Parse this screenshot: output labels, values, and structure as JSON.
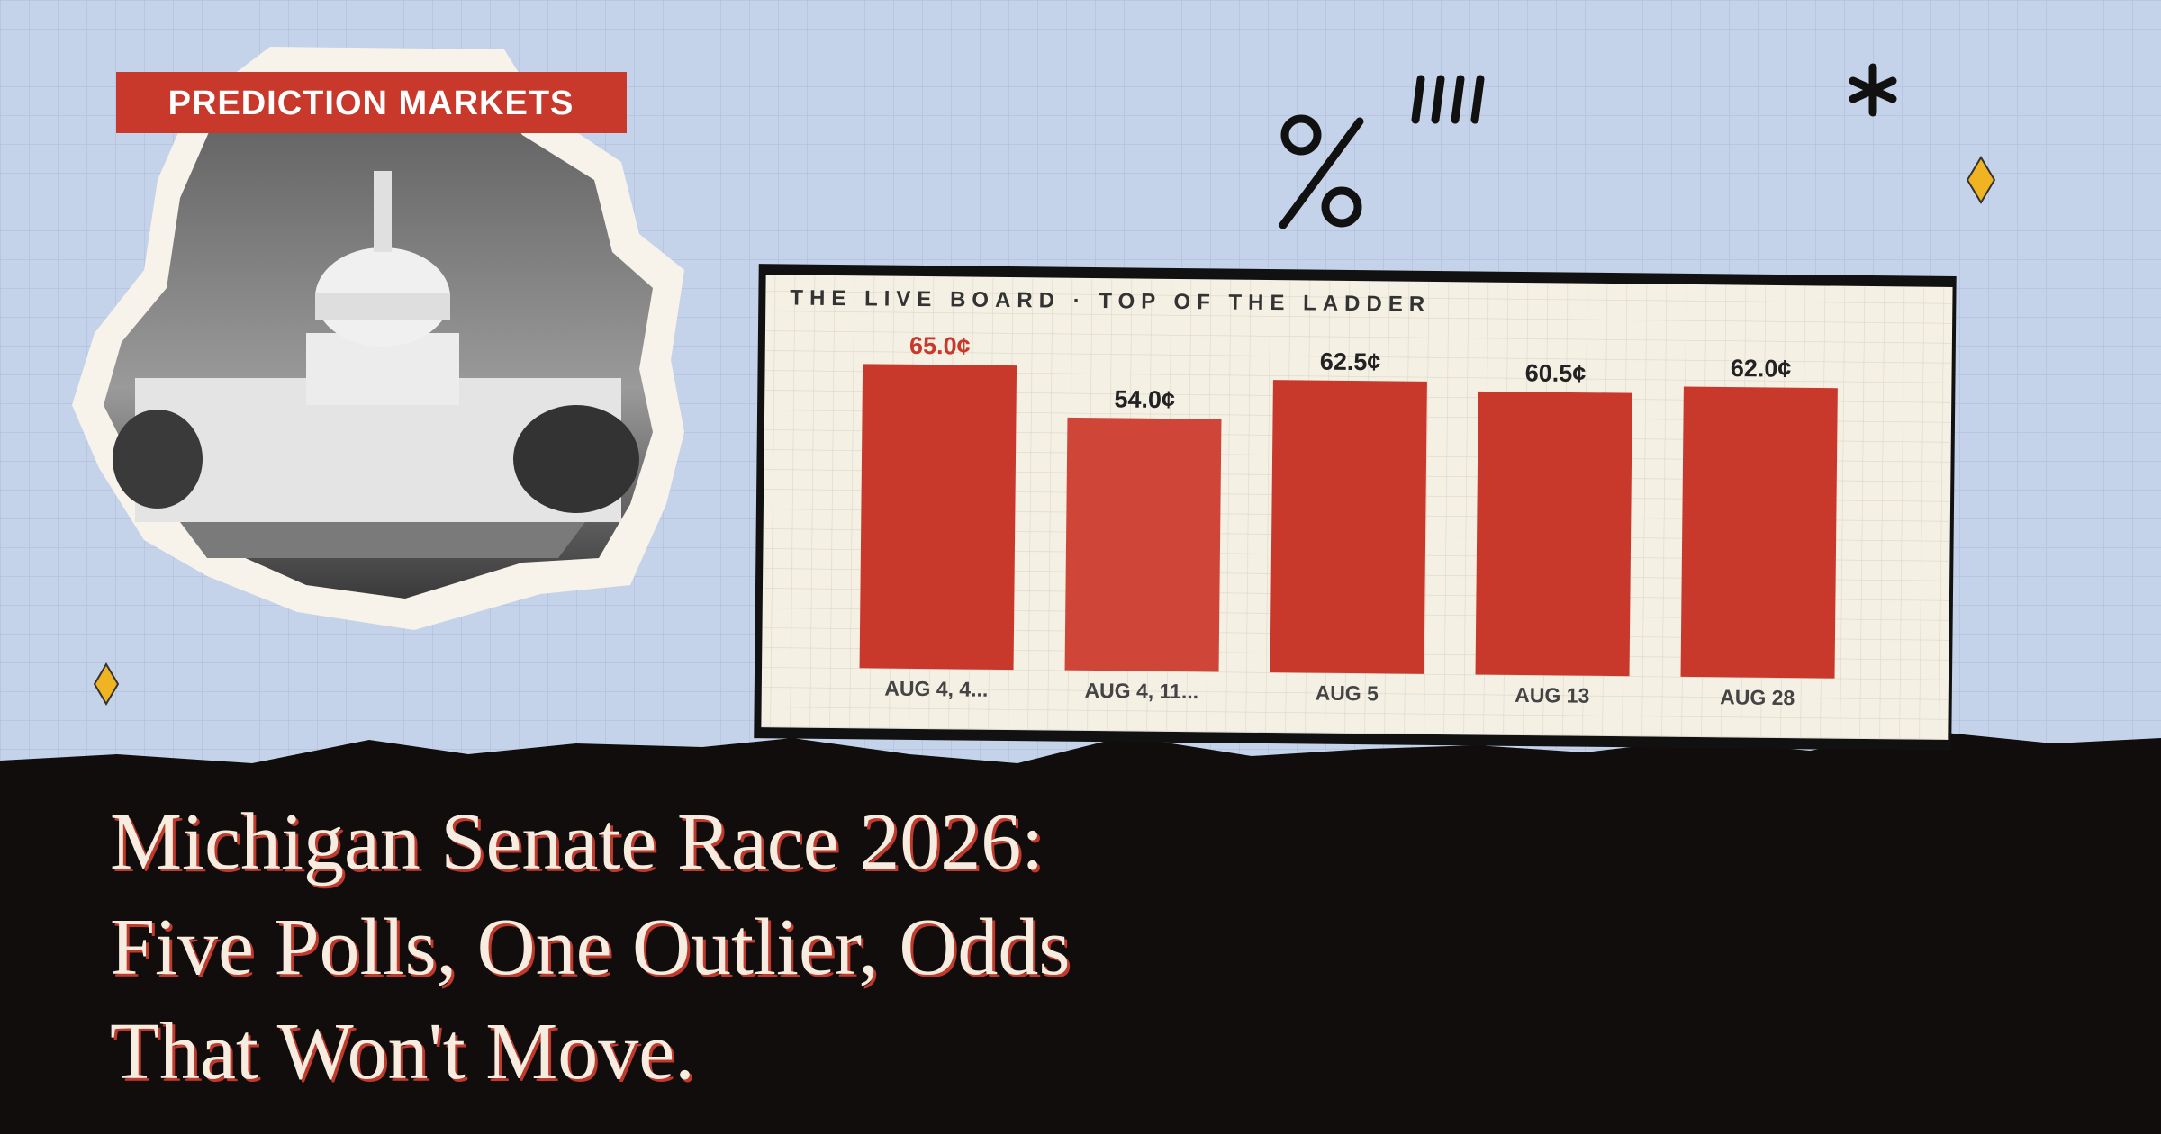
{
  "tag": "PREDICTION MARKETS",
  "headline": [
    "Michigan Senate Race 2026:",
    "Five Polls, One Outlier, Odds",
    "That Won't Move."
  ],
  "chart_data": {
    "type": "bar",
    "title": "THE LIVE BOARD · TOP OF THE LADDER",
    "categories": [
      "AUG 4, 4...",
      "AUG 4, 11...",
      "AUG 5",
      "AUG 13",
      "AUG 28"
    ],
    "values": [
      65.0,
      54.0,
      62.5,
      60.5,
      62.0
    ],
    "value_labels": [
      "65.0¢",
      "54.0¢",
      "62.5¢",
      "60.5¢",
      "62.0¢"
    ],
    "colors": [
      "#c9392b",
      "#cf4639",
      "#c9392b",
      "#c9392b",
      "#c9392b"
    ]
  }
}
